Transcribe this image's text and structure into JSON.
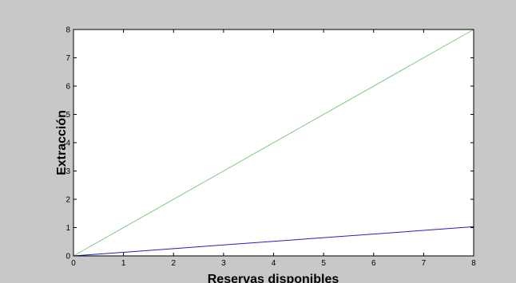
{
  "chart_data": {
    "type": "line",
    "title": "",
    "xlabel": "Reservas disponibles",
    "ylabel": "Extracción",
    "xlim": [
      0,
      8
    ],
    "ylim": [
      0,
      8
    ],
    "x_ticks": [
      0,
      1,
      2,
      3,
      4,
      5,
      6,
      7,
      8
    ],
    "y_ticks": [
      0,
      1,
      2,
      3,
      4,
      5,
      6,
      7,
      8
    ],
    "grid": false,
    "legend": "none",
    "series": [
      {
        "x": [
          0,
          8
        ],
        "y": [
          0,
          8
        ],
        "color": "#7fc97f"
      },
      {
        "x": [
          0,
          8
        ],
        "y": [
          0,
          1.03
        ],
        "color": "#2020c0"
      }
    ]
  },
  "colors": {
    "figure_background": "#c8c8c8",
    "plot_background": "#ffffff",
    "axis": "#000000"
  }
}
